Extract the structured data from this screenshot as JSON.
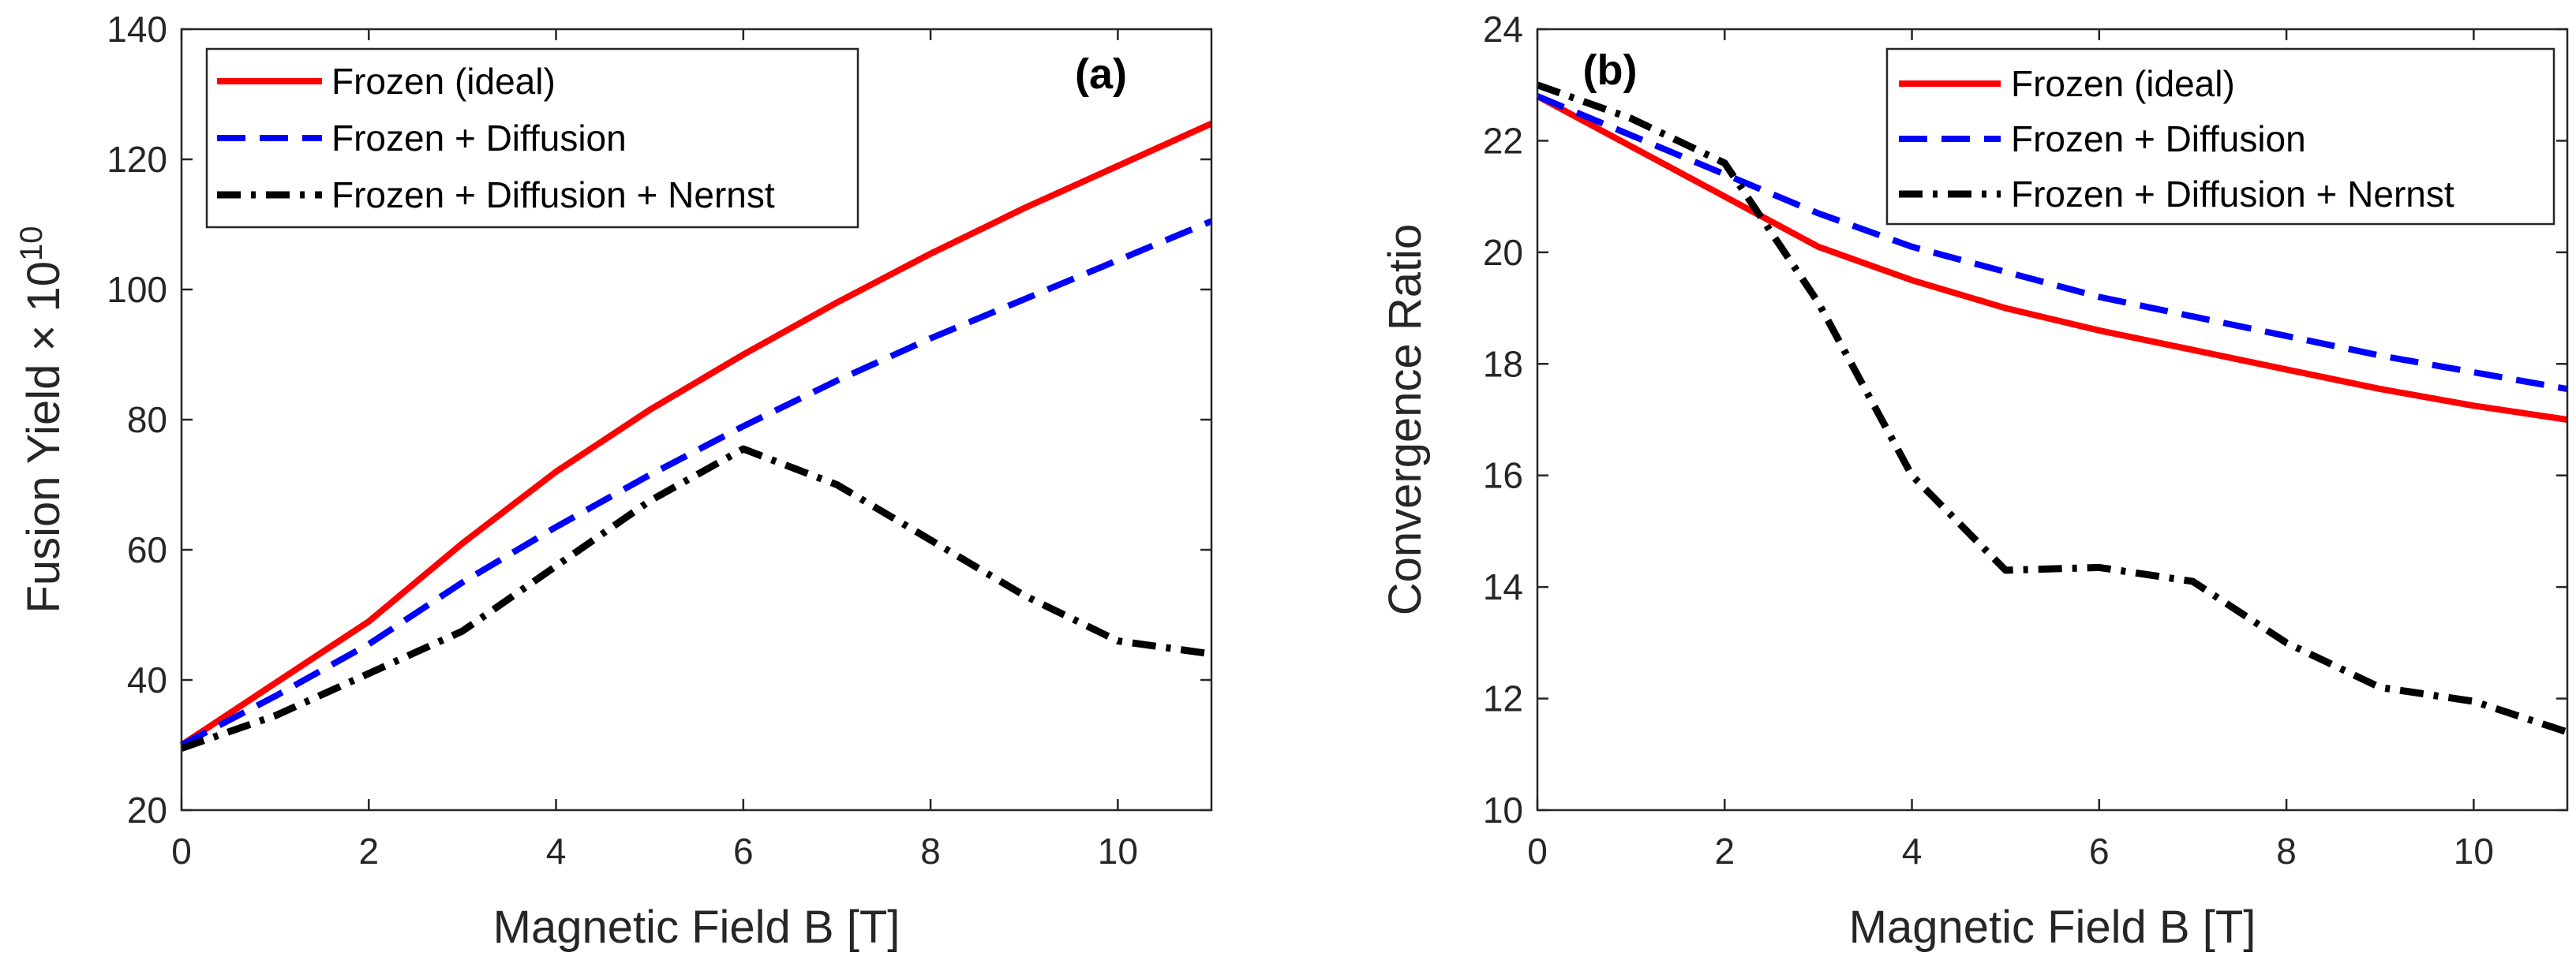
{
  "chart_data": [
    {
      "type": "line",
      "panel_label": "(a)",
      "xlabel": "Magnetic Field B [T]",
      "ylabel": "Fusion Yield × 10",
      "ylabel_exponent": "10",
      "xlim": [
        0,
        11
      ],
      "ylim": [
        20,
        140
      ],
      "xticks": [
        0,
        2,
        4,
        6,
        8,
        10
      ],
      "yticks": [
        20,
        40,
        60,
        80,
        100,
        120,
        140
      ],
      "x": [
        0,
        1,
        2,
        3,
        4,
        5,
        6,
        7,
        8,
        9,
        10,
        11
      ],
      "series": [
        {
          "name": "Frozen (ideal)",
          "color": "#ff0000",
          "style": "solid",
          "values": [
            30,
            39.5,
            49,
            61,
            72,
            81.5,
            90,
            98,
            105.5,
            112.5,
            119,
            125.5
          ]
        },
        {
          "name": "Frozen + Diffusion",
          "color": "#0000ff",
          "style": "dashed",
          "values": [
            30,
            37.5,
            45.5,
            55,
            63.5,
            71.5,
            79,
            86,
            92.5,
            98.5,
            104.5,
            110.5
          ]
        },
        {
          "name": "Frozen + Diffusion + Nernst",
          "color": "#000000",
          "style": "dashdot",
          "values": [
            29.5,
            34.5,
            41,
            47.5,
            57.5,
            67.5,
            75.5,
            70,
            61.5,
            53,
            46,
            44
          ]
        }
      ],
      "legend_position": "top-left"
    },
    {
      "type": "line",
      "panel_label": "(b)",
      "xlabel": "Magnetic Field B [T]",
      "ylabel": "Convergence Ratio",
      "xlim": [
        0,
        11
      ],
      "ylim": [
        10,
        24
      ],
      "xticks": [
        0,
        2,
        4,
        6,
        8,
        10
      ],
      "yticks": [
        10,
        12,
        14,
        16,
        18,
        20,
        22,
        24
      ],
      "x": [
        0,
        1,
        2,
        3,
        4,
        5,
        6,
        7,
        8,
        9,
        10,
        11
      ],
      "series": [
        {
          "name": "Frozen (ideal)",
          "color": "#ff0000",
          "style": "solid",
          "values": [
            22.8,
            21.9,
            21.0,
            20.1,
            19.5,
            19.0,
            18.6,
            18.25,
            17.9,
            17.55,
            17.25,
            17.0
          ]
        },
        {
          "name": "Frozen + Diffusion",
          "color": "#0000ff",
          "style": "dashed",
          "values": [
            22.8,
            22.1,
            21.4,
            20.7,
            20.1,
            19.65,
            19.2,
            18.85,
            18.5,
            18.15,
            17.85,
            17.55
          ]
        },
        {
          "name": "Frozen + Diffusion + Nernst",
          "color": "#000000",
          "style": "dashdot",
          "values": [
            23.0,
            22.4,
            21.6,
            19.1,
            16.0,
            14.3,
            14.35,
            14.1,
            13.0,
            12.2,
            11.95,
            11.4
          ]
        }
      ],
      "legend_position": "top-right"
    }
  ]
}
